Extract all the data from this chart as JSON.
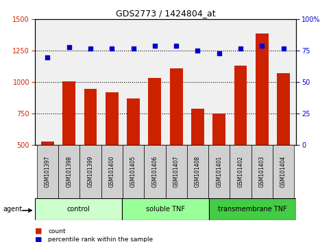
{
  "title": "GDS2773 / 1424804_at",
  "categories": [
    "GSM101397",
    "GSM101398",
    "GSM101399",
    "GSM101400",
    "GSM101405",
    "GSM101406",
    "GSM101407",
    "GSM101408",
    "GSM101401",
    "GSM101402",
    "GSM101403",
    "GSM101404"
  ],
  "bar_values": [
    530,
    1005,
    950,
    920,
    870,
    1035,
    1110,
    790,
    752,
    1135,
    1390,
    1075
  ],
  "scatter_values": [
    70,
    78,
    77,
    77,
    77,
    79,
    79,
    75,
    73,
    77,
    79,
    77
  ],
  "bar_color": "#cc2200",
  "scatter_color": "#0000cc",
  "ylim_left": [
    500,
    1500
  ],
  "ylim_right": [
    0,
    100
  ],
  "yticks_left": [
    500,
    750,
    1000,
    1250,
    1500
  ],
  "yticks_right": [
    0,
    25,
    50,
    75,
    100
  ],
  "groups": [
    {
      "label": "control",
      "start": 0,
      "end": 4,
      "color": "#ccffcc"
    },
    {
      "label": "soluble TNF",
      "start": 4,
      "end": 8,
      "color": "#99ff99"
    },
    {
      "label": "transmembrane TNF",
      "start": 8,
      "end": 12,
      "color": "#44cc44"
    }
  ],
  "legend_items": [
    {
      "label": "count",
      "color": "#cc2200"
    },
    {
      "label": "percentile rank within the sample",
      "color": "#0000cc"
    }
  ],
  "agent_label": "agent",
  "tick_bg_color": "#d0d0d0",
  "bg_color_plot": "#f0f0f0",
  "bg_color_fig": "#ffffff",
  "dotted_lines": [
    750,
    1000,
    1250
  ]
}
